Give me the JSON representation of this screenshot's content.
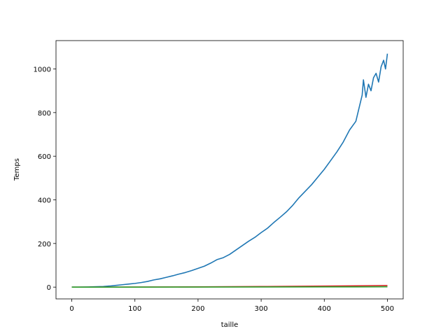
{
  "chart_data": {
    "type": "line",
    "title": "",
    "xlabel": "taille",
    "ylabel": "Temps",
    "xlim": [
      -25,
      525
    ],
    "ylim": [
      -54,
      1130
    ],
    "xticks": [
      0,
      100,
      200,
      300,
      400,
      500
    ],
    "yticks": [
      0,
      200,
      400,
      600,
      800,
      1000
    ],
    "grid": false,
    "legend": "none",
    "series": [
      {
        "color": "#1f77b4",
        "x": [
          0,
          10,
          20,
          30,
          40,
          50,
          60,
          70,
          80,
          90,
          100,
          110,
          120,
          130,
          140,
          150,
          160,
          170,
          180,
          190,
          200,
          210,
          220,
          230,
          240,
          250,
          260,
          270,
          280,
          290,
          300,
          310,
          320,
          330,
          340,
          350,
          360,
          370,
          380,
          390,
          400,
          410,
          420,
          430,
          440,
          450,
          455,
          460,
          462,
          466,
          470,
          474,
          478,
          482,
          486,
          490,
          494,
          497,
          500
        ],
        "values": [
          0,
          0.1,
          0.5,
          1,
          2,
          3,
          5,
          8,
          11,
          14,
          17,
          21,
          26,
          33,
          38,
          45,
          52,
          60,
          67,
          76,
          86,
          96,
          110,
          126,
          135,
          150,
          170,
          190,
          210,
          228,
          250,
          270,
          296,
          320,
          345,
          375,
          410,
          440,
          470,
          505,
          540,
          580,
          620,
          665,
          720,
          760,
          820,
          880,
          950,
          870,
          930,
          900,
          960,
          980,
          940,
          1010,
          1040,
          1000,
          1070
        ]
      },
      {
        "color": "#d62728",
        "x": [
          0,
          100,
          200,
          300,
          400,
          500
        ],
        "values": [
          0,
          0.3,
          1.2,
          2.7,
          4.8,
          7.5
        ]
      },
      {
        "color": "#2ca02c",
        "x": [
          0,
          100,
          200,
          300,
          400,
          500
        ],
        "values": [
          0,
          0.1,
          0.3,
          0.6,
          1.0,
          1.5
        ]
      }
    ]
  }
}
